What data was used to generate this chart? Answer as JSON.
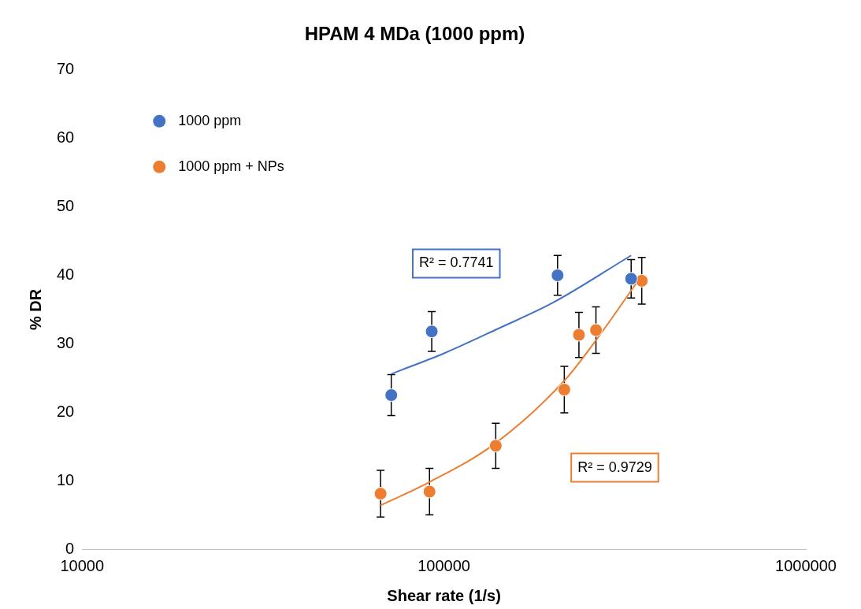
{
  "chart_data": {
    "type": "scatter",
    "title": "HPAM 4 MDa (1000 ppm)",
    "xlabel": "Shear rate (1/s)",
    "ylabel": "% DR",
    "log": "x",
    "xlim": [
      10000,
      1000000
    ],
    "xticks": [
      10000,
      100000,
      1000000
    ],
    "ylim": [
      0,
      70
    ],
    "yticks": [
      0,
      10,
      20,
      30,
      40,
      50,
      60,
      70
    ],
    "grid": false,
    "legend": "top left",
    "series": [
      {
        "name": "1000 ppm",
        "marker": "circle",
        "color": "#4472c4",
        "x": [
          71500,
          92500,
          206000,
          329000
        ],
        "values": [
          22.5,
          31.8,
          40.0,
          39.5
        ],
        "errors": [
          3,
          2.9,
          2.9,
          2.8
        ]
      },
      {
        "name": "1000 ppm + NPs",
        "marker": "circle",
        "color": "#ed7d31",
        "x": [
          66800,
          91200,
          139000,
          215000,
          236000,
          263000,
          352000
        ],
        "values": [
          8.1,
          8.4,
          15.1,
          23.3,
          31.3,
          32.0,
          39.2
        ],
        "errors": [
          3.4,
          3.4,
          3.3,
          3.4,
          3.3,
          3.4,
          3.4
        ]
      },
      {
        "type": "line",
        "marker": "none",
        "color": "#4472c4",
        "x": [
          71500,
          100000,
          141000,
          200000,
          329000
        ],
        "values": [
          25.6,
          28.6,
          32.2,
          36.0,
          42.9
        ]
      },
      {
        "type": "line",
        "marker": "none",
        "color": "#ed7d31",
        "x": [
          66800,
          91200,
          139000,
          215000,
          263000,
          352000
        ],
        "values": [
          6.4,
          9.8,
          15.5,
          24.6,
          30.5,
          40.0
        ]
      }
    ],
    "annotations": [
      "R² = 0.7741",
      "R² = 0.9729"
    ]
  }
}
